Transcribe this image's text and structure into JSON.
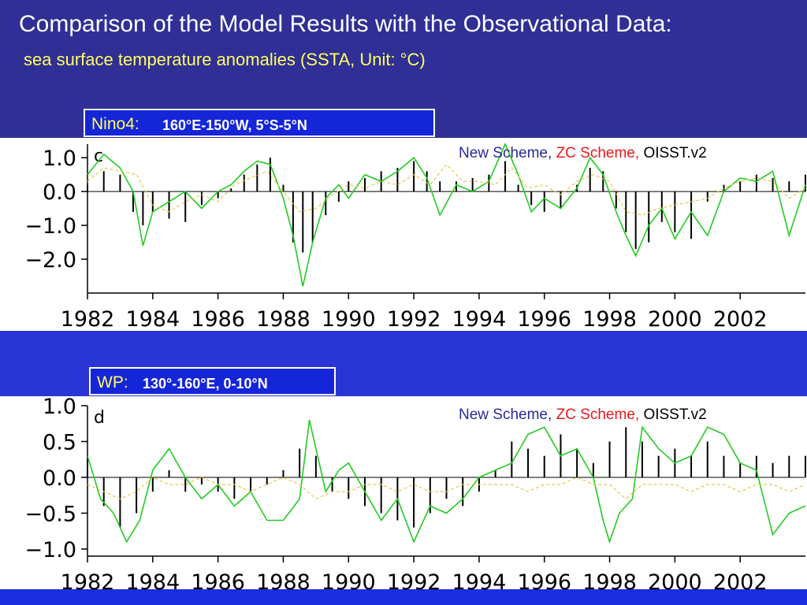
{
  "header": {
    "title": "Comparison of the Model Results with the Observational Data:",
    "subtitle": "sea surface temperature anomalies (SSTA, Unit: °C)"
  },
  "panels": [
    {
      "region_name": "Nino4:",
      "region_coords": "160°E-150°W, 5°S-5°N",
      "panel_letter": "c",
      "legend": {
        "new": "New Scheme,",
        "zc": "ZC Scheme,",
        "obs": "OISST.v2"
      }
    },
    {
      "region_name": "WP:",
      "region_coords": "130°-160°E, 0-10°N",
      "panel_letter": "d",
      "legend": {
        "new": "New Scheme,",
        "zc": "ZC Scheme,",
        "obs": "OISST.v2"
      }
    }
  ],
  "colors": {
    "observed_bars": "#000000",
    "new_scheme": "#22cc22",
    "zc_scheme": "#e8c84a",
    "title_band": "#2f2f95",
    "region_box": "#1525d8"
  },
  "chart_data": [
    {
      "type": "bar",
      "title": "Nino4",
      "xlim": [
        1982,
        2004
      ],
      "ylim": [
        -3.0,
        1.4
      ],
      "yticks": [
        1.0,
        0.0,
        -1.0,
        -2.0
      ],
      "ytick_labels": [
        "1.0",
        "0.0",
        "−1.0",
        "−2.0"
      ],
      "xticks": [
        1982,
        1984,
        1986,
        1988,
        1990,
        1992,
        1994,
        1996,
        1998,
        2000,
        2002
      ],
      "xtick_labels": [
        "1982",
        "1984",
        "1986",
        "1988",
        "1990",
        "1992",
        "1994",
        "1996",
        "1998",
        "2000",
        "2002"
      ],
      "series": [
        {
          "name": "OISST.v2",
          "style": "bars",
          "x": [
            1982.0,
            1982.5,
            1983.0,
            1983.4,
            1983.7,
            1984.0,
            1984.5,
            1985.0,
            1985.5,
            1986.0,
            1986.4,
            1986.8,
            1987.2,
            1987.6,
            1988.0,
            1988.3,
            1988.6,
            1988.9,
            1989.3,
            1989.7,
            1990.0,
            1990.5,
            1991.0,
            1991.5,
            1992.0,
            1992.4,
            1992.8,
            1993.3,
            1993.8,
            1994.3,
            1994.8,
            1995.2,
            1995.6,
            1996.0,
            1996.5,
            1997.0,
            1997.4,
            1997.8,
            1998.2,
            1998.5,
            1998.8,
            1999.2,
            1999.6,
            2000.0,
            2000.5,
            2001.0,
            2001.5,
            2002.0,
            2002.5,
            2003.0,
            2003.5,
            2004.0
          ],
          "y": [
            0.2,
            0.6,
            0.5,
            -0.6,
            -1.0,
            -0.6,
            -0.8,
            -0.9,
            -0.4,
            -0.2,
            0.1,
            0.5,
            0.8,
            1.0,
            0.2,
            -1.5,
            -1.8,
            -1.5,
            -0.7,
            -0.3,
            0.3,
            0.4,
            0.6,
            0.7,
            0.9,
            0.6,
            0.3,
            0.3,
            0.4,
            0.5,
            0.9,
            0.2,
            -0.4,
            -0.6,
            -0.5,
            0.2,
            0.7,
            0.6,
            -0.5,
            -1.2,
            -1.7,
            -1.5,
            -0.9,
            -1.2,
            -1.4,
            -0.3,
            0.2,
            0.3,
            0.5,
            0.4,
            0.3,
            0.5
          ]
        },
        {
          "name": "New Scheme",
          "style": "line",
          "x": [
            1982.0,
            1982.5,
            1983.0,
            1983.4,
            1983.7,
            1984.0,
            1984.5,
            1985.0,
            1985.5,
            1986.0,
            1986.4,
            1986.8,
            1987.2,
            1987.6,
            1988.0,
            1988.3,
            1988.6,
            1988.9,
            1989.3,
            1989.7,
            1990.0,
            1990.5,
            1991.0,
            1991.5,
            1992.0,
            1992.4,
            1992.8,
            1993.3,
            1993.8,
            1994.3,
            1994.8,
            1995.2,
            1995.6,
            1996.0,
            1996.5,
            1997.0,
            1997.4,
            1997.8,
            1998.2,
            1998.5,
            1998.8,
            1999.2,
            1999.6,
            2000.0,
            2000.5,
            2001.0,
            2001.5,
            2002.0,
            2002.5,
            2003.0,
            2003.5,
            2004.0
          ],
          "y": [
            0.5,
            1.1,
            0.7,
            0.0,
            -1.6,
            -0.6,
            -0.3,
            0.0,
            -0.5,
            0.0,
            0.2,
            0.6,
            0.9,
            0.8,
            -0.2,
            -1.3,
            -2.8,
            -1.5,
            -0.2,
            0.2,
            -0.2,
            0.5,
            0.3,
            0.6,
            1.0,
            0.4,
            -0.7,
            0.2,
            0.0,
            0.3,
            1.4,
            0.5,
            -0.6,
            -0.2,
            -0.5,
            0.1,
            1.0,
            0.5,
            -0.6,
            -1.3,
            -1.9,
            -1.0,
            -0.5,
            -1.4,
            -0.6,
            -1.3,
            0.0,
            0.4,
            0.3,
            0.6,
            -1.3,
            0.2
          ]
        },
        {
          "name": "ZC Scheme",
          "style": "dashed-line",
          "x": [
            1982.0,
            1982.5,
            1983.0,
            1983.5,
            1984.0,
            1984.5,
            1985.0,
            1985.5,
            1986.0,
            1986.5,
            1987.0,
            1987.5,
            1988.0,
            1988.5,
            1989.0,
            1989.5,
            1990.0,
            1990.5,
            1991.0,
            1991.5,
            1992.0,
            1992.5,
            1993.0,
            1993.5,
            1994.0,
            1994.5,
            1995.0,
            1995.5,
            1996.0,
            1996.5,
            1997.0,
            1997.5,
            1998.0,
            1998.5,
            1999.0,
            1999.5,
            2000.0,
            2000.5,
            2001.0,
            2001.5,
            2002.0,
            2002.5,
            2003.0,
            2003.5,
            2004.0
          ],
          "y": [
            0.3,
            0.7,
            0.6,
            0.5,
            -0.4,
            -0.6,
            -0.3,
            -0.1,
            -0.3,
            0.2,
            0.4,
            0.6,
            0.0,
            -0.6,
            -0.5,
            -0.1,
            0.2,
            0.1,
            0.3,
            0.2,
            0.5,
            0.2,
            0.8,
            0.3,
            0.3,
            0.2,
            0.7,
            0.1,
            0.2,
            -0.1,
            0.3,
            0.5,
            0.3,
            -0.6,
            -0.7,
            -0.5,
            -0.4,
            -0.3,
            -0.2,
            0.1,
            0.3,
            0.4,
            0.3,
            -0.2,
            0.1
          ]
        }
      ]
    },
    {
      "type": "bar",
      "title": "WP",
      "xlim": [
        1982,
        2004
      ],
      "ylim": [
        -1.1,
        1.0
      ],
      "yticks": [
        1.0,
        0.5,
        0.0,
        -0.5,
        -1.0
      ],
      "ytick_labels": [
        "1.0",
        "0.5",
        "0.0",
        "−0.5",
        "−1.0"
      ],
      "xticks": [
        1982,
        1984,
        1986,
        1988,
        1990,
        1992,
        1994,
        1996,
        1998,
        2000,
        2002
      ],
      "xtick_labels": [
        "1982",
        "1984",
        "1986",
        "1988",
        "1990",
        "1992",
        "1994",
        "1996",
        "1998",
        "2000",
        "2002"
      ],
      "series": [
        {
          "name": "OISST.v2",
          "style": "bars",
          "x": [
            1982.0,
            1982.5,
            1983.0,
            1983.5,
            1984.0,
            1984.5,
            1985.0,
            1985.5,
            1986.0,
            1986.5,
            1987.0,
            1987.5,
            1988.0,
            1988.5,
            1989.0,
            1989.5,
            1990.0,
            1990.5,
            1991.0,
            1991.5,
            1992.0,
            1992.5,
            1993.0,
            1993.5,
            1994.0,
            1994.5,
            1995.0,
            1995.5,
            1996.0,
            1996.5,
            1997.0,
            1997.5,
            1998.0,
            1998.5,
            1999.0,
            1999.5,
            2000.0,
            2000.5,
            2001.0,
            2001.5,
            2002.0,
            2002.5,
            2003.0,
            2003.5,
            2004.0
          ],
          "y": [
            0.3,
            -0.4,
            -0.7,
            -0.5,
            -0.2,
            0.1,
            -0.2,
            -0.1,
            -0.2,
            -0.3,
            -0.2,
            -0.1,
            0.1,
            0.4,
            0.3,
            -0.2,
            -0.3,
            -0.4,
            -0.5,
            -0.6,
            -0.7,
            -0.5,
            -0.3,
            -0.4,
            -0.2,
            0.1,
            0.5,
            0.4,
            0.3,
            0.6,
            0.4,
            0.2,
            0.5,
            0.7,
            0.5,
            0.3,
            0.4,
            0.3,
            0.5,
            0.3,
            0.2,
            0.3,
            0.2,
            0.3,
            0.3
          ]
        },
        {
          "name": "New Scheme",
          "style": "line",
          "x": [
            1982.0,
            1982.4,
            1982.8,
            1983.2,
            1983.6,
            1984.0,
            1984.5,
            1985.0,
            1985.5,
            1986.0,
            1986.5,
            1987.0,
            1987.5,
            1988.0,
            1988.5,
            1988.8,
            1989.0,
            1989.3,
            1989.7,
            1990.0,
            1990.5,
            1991.0,
            1991.5,
            1992.0,
            1992.5,
            1993.0,
            1993.5,
            1994.0,
            1994.5,
            1995.0,
            1995.5,
            1996.0,
            1996.5,
            1997.0,
            1997.5,
            1997.8,
            1998.0,
            1998.3,
            1998.7,
            1999.0,
            1999.5,
            2000.0,
            2000.5,
            2001.0,
            2001.5,
            2002.0,
            2002.5,
            2003.0,
            2003.5,
            2004.0
          ],
          "y": [
            0.3,
            -0.3,
            -0.5,
            -0.9,
            -0.6,
            0.1,
            0.4,
            0.0,
            -0.3,
            -0.1,
            -0.4,
            -0.2,
            -0.6,
            -0.6,
            -0.3,
            0.8,
            0.4,
            -0.2,
            0.1,
            0.2,
            -0.2,
            -0.6,
            -0.3,
            -0.9,
            -0.4,
            -0.5,
            -0.3,
            0.0,
            0.1,
            0.2,
            0.6,
            0.7,
            0.3,
            0.4,
            0.0,
            -0.6,
            -0.9,
            -0.5,
            -0.3,
            0.7,
            0.4,
            0.2,
            0.3,
            0.7,
            0.6,
            0.2,
            0.1,
            -0.8,
            -0.5,
            -0.4
          ]
        },
        {
          "name": "ZC Scheme",
          "style": "dashed-line",
          "x": [
            1982.0,
            1982.5,
            1983.0,
            1983.5,
            1984.0,
            1984.5,
            1985.0,
            1985.5,
            1986.0,
            1986.5,
            1987.0,
            1987.5,
            1988.0,
            1988.5,
            1989.0,
            1989.5,
            1990.0,
            1990.5,
            1991.0,
            1991.5,
            1992.0,
            1992.5,
            1993.0,
            1993.5,
            1994.0,
            1994.5,
            1995.0,
            1995.5,
            1996.0,
            1996.5,
            1997.0,
            1997.5,
            1998.0,
            1998.5,
            1999.0,
            1999.5,
            2000.0,
            2000.5,
            2001.0,
            2001.5,
            2002.0,
            2002.5,
            2003.0,
            2003.5,
            2004.0
          ],
          "y": [
            -0.1,
            -0.2,
            -0.3,
            -0.2,
            0.0,
            -0.1,
            -0.1,
            0.0,
            -0.1,
            -0.1,
            -0.2,
            -0.1,
            0.0,
            -0.1,
            -0.3,
            -0.2,
            -0.2,
            -0.1,
            -0.1,
            -0.2,
            -0.1,
            -0.2,
            -0.2,
            -0.1,
            -0.1,
            -0.1,
            -0.1,
            -0.2,
            -0.1,
            -0.1,
            0.0,
            -0.1,
            -0.1,
            -0.3,
            -0.1,
            -0.1,
            -0.1,
            -0.2,
            -0.1,
            -0.1,
            -0.2,
            -0.1,
            -0.1,
            -0.2,
            -0.1
          ]
        }
      ]
    }
  ]
}
